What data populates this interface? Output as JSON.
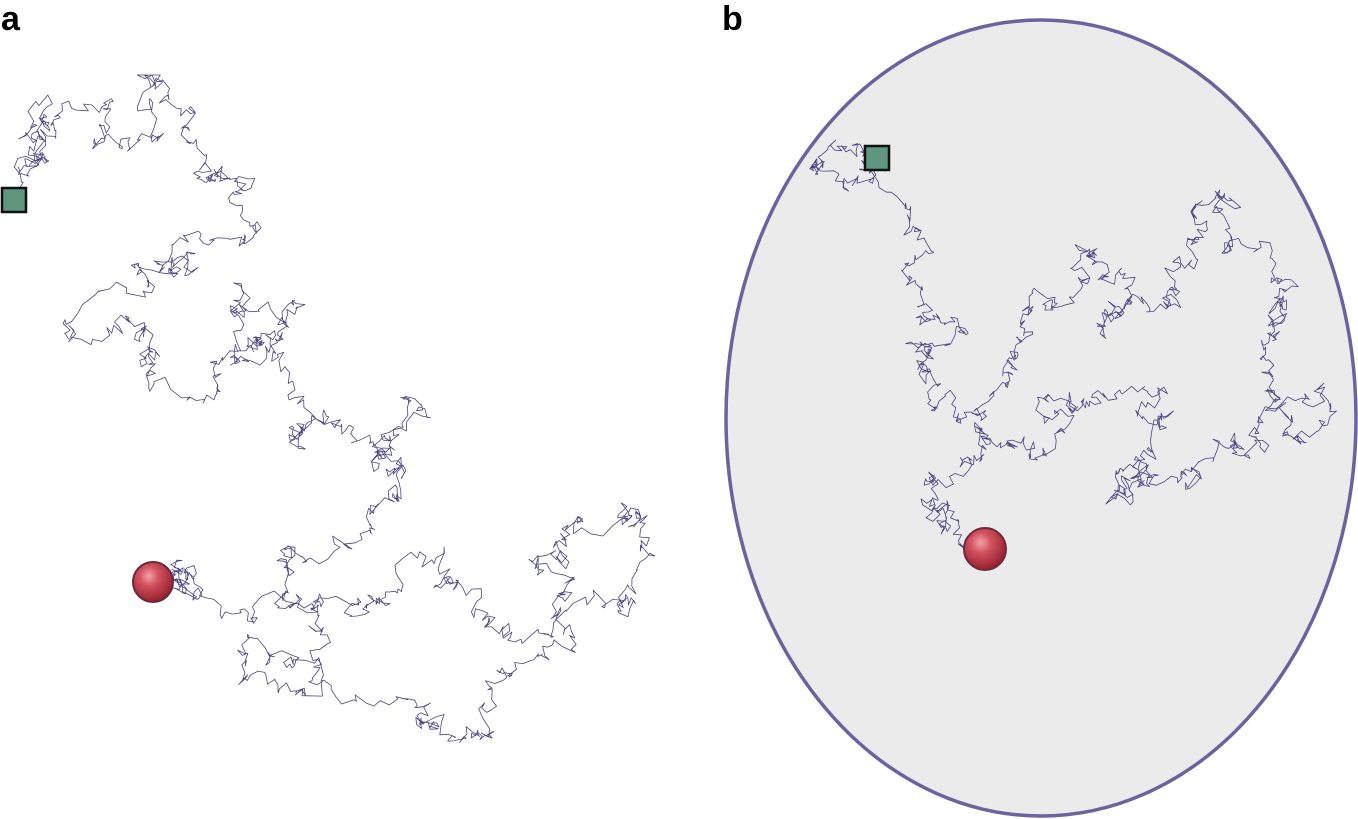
{
  "panels": [
    {
      "label": "a",
      "confined": false
    },
    {
      "label": "b",
      "confined": true
    }
  ],
  "colors": {
    "trajectory": "#4b4583",
    "boundary_stroke": "#6b639e",
    "boundary_fill": "#ebebeb",
    "start_marker": "#5e9680",
    "end_marker": "#b32e3e",
    "background": "#ffffff"
  },
  "markers": {
    "start_shape": "square",
    "end_shape": "sphere"
  }
}
